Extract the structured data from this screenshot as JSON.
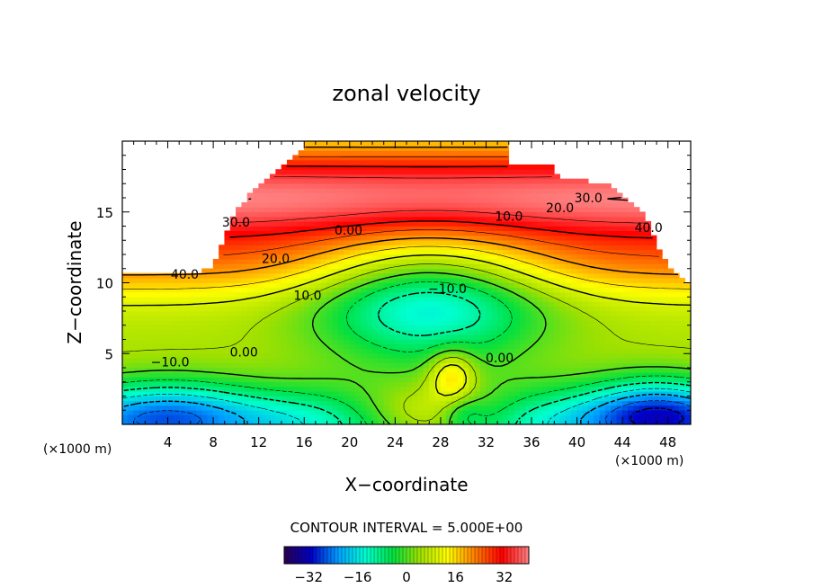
{
  "chart_data": {
    "type": "heatmap",
    "title": "zonal velocity",
    "xlabel": "X−coordinate",
    "ylabel": "Z−coordinate",
    "x_unit_left": "(×1000 m)",
    "x_unit_right": "(×1000 m)",
    "xlim": [
      0,
      50
    ],
    "ylim": [
      0,
      20
    ],
    "x_ticks": [
      4,
      8,
      12,
      16,
      20,
      24,
      28,
      32,
      36,
      40,
      44,
      48
    ],
    "y_ticks": [
      5,
      10,
      15
    ],
    "contour_interval_text": "CONTOUR INTERVAL = 5.000E+00",
    "contour_interval": 5,
    "contour_labels": [
      {
        "text": "40.0",
        "x": 5.5,
        "y": 10.6
      },
      {
        "text": "30.0",
        "x": 10.0,
        "y": 14.3
      },
      {
        "text": "20.0",
        "x": 13.5,
        "y": 11.7
      },
      {
        "text": "10.0",
        "x": 16.3,
        "y": 9.1
      },
      {
        "text": "0.00",
        "x": 19.9,
        "y": 13.7
      },
      {
        "text": "0.00",
        "x": 10.7,
        "y": 5.1
      },
      {
        "text": "−10.0",
        "x": 4.2,
        "y": 4.4
      },
      {
        "text": "−10.0",
        "x": 28.6,
        "y": 9.6
      },
      {
        "text": "10.0",
        "x": 34.0,
        "y": 14.7
      },
      {
        "text": "20.0",
        "x": 38.5,
        "y": 15.3
      },
      {
        "text": "30.0",
        "x": 41.0,
        "y": 16.0
      },
      {
        "text": "40.0",
        "x": 46.3,
        "y": 13.9
      },
      {
        "text": "0.00",
        "x": 33.2,
        "y": 4.7
      }
    ],
    "colorbar": {
      "min": -40,
      "max": 40,
      "tick_values": [
        -32,
        -16,
        0,
        16,
        32
      ],
      "tick_labels": [
        "−32",
        "−16",
        "0",
        "16",
        "32"
      ]
    },
    "grid": false,
    "legend": "colorbar below plot"
  },
  "colors": {
    "scale": [
      "#2a0050",
      "#0000c8",
      "#00a0ff",
      "#00ffd0",
      "#00e040",
      "#a0e000",
      "#ffff00",
      "#ff8000",
      "#ff0000",
      "#ff8080"
    ],
    "background": "#ffffff",
    "missing": "#ffffff"
  }
}
